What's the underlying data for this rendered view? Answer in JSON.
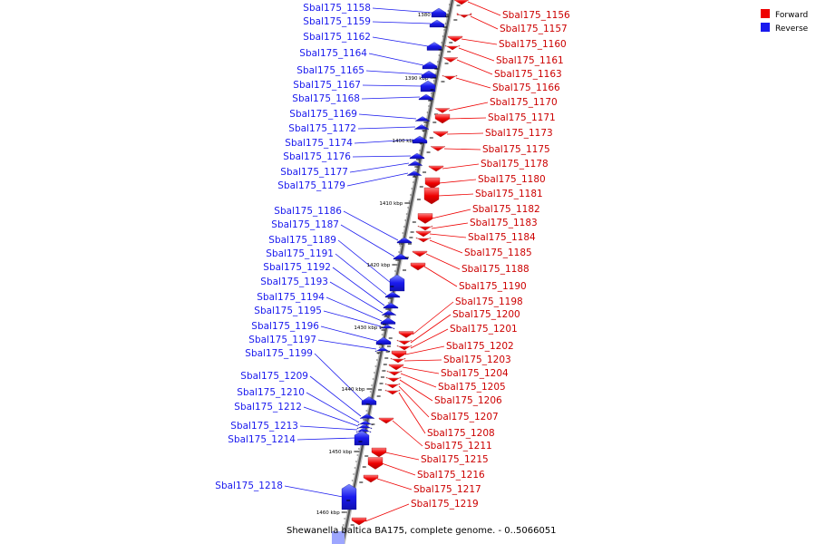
{
  "caption": "Shewanella baltica BA175, complete genome. - 0..5066051",
  "legend": [
    {
      "label": "Forward",
      "color": "#ee0000"
    },
    {
      "label": "Reverse",
      "color": "#1a1aee"
    }
  ],
  "ticks": [
    "1380 kbp",
    "1390 kbp",
    "1400 kbp",
    "1410 kbp",
    "1420 kbp",
    "1430 kbp",
    "1440 kbp",
    "1450 kbp",
    "1460 kbp"
  ],
  "reverse_genes": [
    "Sbal175_1158",
    "Sbal175_1159",
    "Sbal175_1162",
    "Sbal175_1164",
    "Sbal175_1165",
    "Sbal175_1167",
    "Sbal175_1168",
    "Sbal175_1169",
    "Sbal175_1172",
    "Sbal175_1174",
    "Sbal175_1176",
    "Sbal175_1177",
    "Sbal175_1179",
    "Sbal175_1186",
    "Sbal175_1187",
    "Sbal175_1189",
    "Sbal175_1191",
    "Sbal175_1192",
    "Sbal175_1193",
    "Sbal175_1194",
    "Sbal175_1195",
    "Sbal175_1196",
    "Sbal175_1197",
    "Sbal175_1199",
    "Sbal175_1209",
    "Sbal175_1210",
    "Sbal175_1212",
    "Sbal175_1213",
    "Sbal175_1214",
    "Sbal175_1218"
  ],
  "forward_genes": [
    "Sbal175_1156",
    "Sbal175_1157",
    "Sbal175_1160",
    "Sbal175_1161",
    "Sbal175_1163",
    "Sbal175_1166",
    "Sbal175_1170",
    "Sbal175_1171",
    "Sbal175_1173",
    "Sbal175_1175",
    "Sbal175_1178",
    "Sbal175_1180",
    "Sbal175_1181",
    "Sbal175_1182",
    "Sbal175_1183",
    "Sbal175_1184",
    "Sbal175_1185",
    "Sbal175_1188",
    "Sbal175_1190",
    "Sbal175_1198",
    "Sbal175_1200",
    "Sbal175_1201",
    "Sbal175_1202",
    "Sbal175_1203",
    "Sbal175_1204",
    "Sbal175_1205",
    "Sbal175_1206",
    "Sbal175_1207",
    "Sbal175_1208",
    "Sbal175_1211",
    "Sbal175_1215",
    "Sbal175_1216",
    "Sbal175_1217",
    "Sbal175_1219"
  ]
}
